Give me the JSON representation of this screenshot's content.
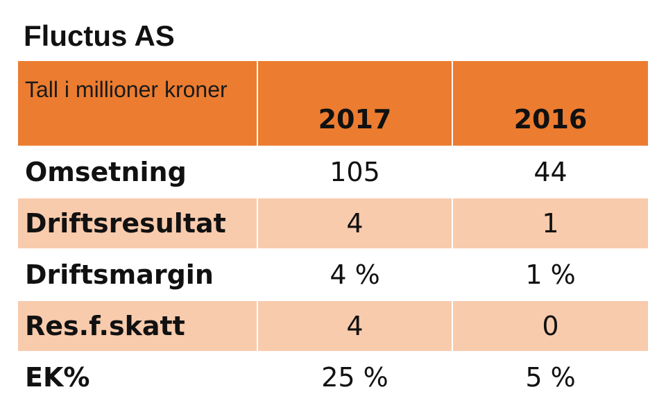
{
  "title": "Fluctus AS",
  "table": {
    "unit_label": "Tall i millioner kroner",
    "years": [
      "2017",
      "2016"
    ],
    "rows": [
      {
        "label": "Omsetning",
        "values": [
          "105",
          "44"
        ]
      },
      {
        "label": "Driftsresultat",
        "values": [
          "4",
          "1"
        ]
      },
      {
        "label": "Driftsmargin",
        "values": [
          "4 %",
          "1 %"
        ]
      },
      {
        "label": "Res.f.skatt",
        "values": [
          "4",
          "0"
        ]
      },
      {
        "label": "EK%",
        "values": [
          "25 %",
          "5 %"
        ]
      }
    ]
  },
  "colors": {
    "header_bg": "#ec7c30",
    "stripe_bg": "#f8cbad",
    "row_bg": "#ffffff"
  }
}
